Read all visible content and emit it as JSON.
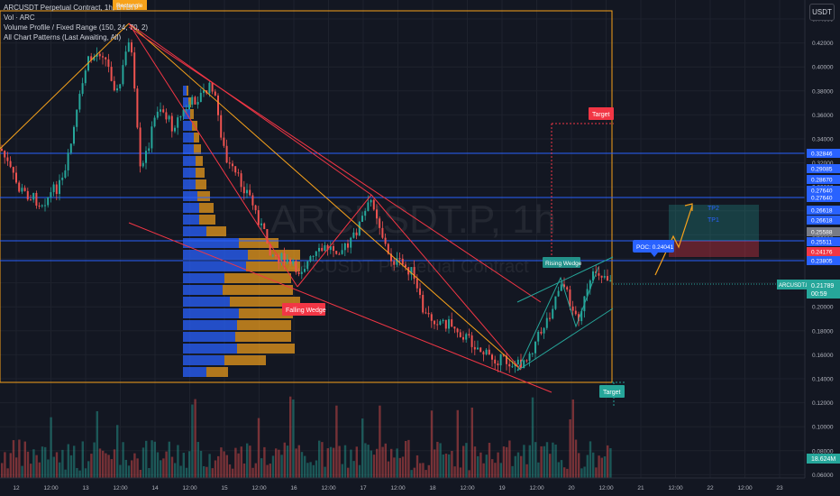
{
  "legend": {
    "symbol_line": "ARCUSDT Perpetual Contract, 1h, BYBIT",
    "indicators": [
      "Vol · ARC",
      "Volume Profile / Fixed Range (150, 24, 70, 2)",
      "All Chart Patterns (Last Awaiting, All)"
    ]
  },
  "currency_button": "USDT",
  "watermark": {
    "symbol": "ARCUSDT.P, 1h",
    "name": "ARCUSDT Perpetual Contract"
  },
  "price_axis": {
    "ticks": [
      "0.44000",
      "0.42000",
      "0.40000",
      "0.38000",
      "0.36000",
      "0.34000",
      "0.32000",
      "0.30000",
      "0.28000",
      "0.26000",
      "0.24000",
      "0.22000",
      "0.20000",
      "0.18000",
      "0.16000",
      "0.14000",
      "0.12000",
      "0.10000",
      "0.08000",
      "0.06000"
    ],
    "highlighted": [
      {
        "text": "0.32846",
        "color": "#2962ff"
      },
      {
        "text": "0.29085",
        "color": "#2962ff"
      },
      {
        "text": "0.28670",
        "color": "#2962ff"
      },
      {
        "text": "0.27640",
        "color": "#2962ff"
      },
      {
        "text": "0.27640",
        "color": "#2962ff"
      },
      {
        "text": "0.26618",
        "color": "#2962ff"
      },
      {
        "text": "0.26618",
        "color": "#2962ff"
      },
      {
        "text": "0.25588",
        "color": "#787b86"
      },
      {
        "text": "0.25511",
        "color": "#2962ff"
      },
      {
        "text": "0.24176",
        "color": "#f23645"
      },
      {
        "text": "0.23805",
        "color": "#2962ff"
      }
    ],
    "current_price": "0.21789",
    "countdown": "00:59",
    "symbol_tag": "ARCUSDT.P",
    "volume_value": "18.624M"
  },
  "time_axis": {
    "labels": [
      "12",
      "12:00",
      "13",
      "12:00",
      "14",
      "12:00",
      "15",
      "12:00",
      "16",
      "12:00",
      "17",
      "12:00",
      "18",
      "12:00",
      "19",
      "12:00",
      "20",
      "12:00",
      "21",
      "12:00",
      "22",
      "12:00",
      "23"
    ]
  },
  "annotations": {
    "rectangle": "Rectangle",
    "target_top": "Target",
    "target_bottom": "Target",
    "falling_wedge": "Falling Wedge",
    "rising_wedge": "Rising Wedge",
    "poc": "POC: 0.24041",
    "tp2": "TP2",
    "tp1": "TP1"
  },
  "colors": {
    "background": "#131722",
    "up": "#26a69a",
    "down": "#ef5350",
    "hline": "#2962ff",
    "orange": "#f7a21b"
  }
}
